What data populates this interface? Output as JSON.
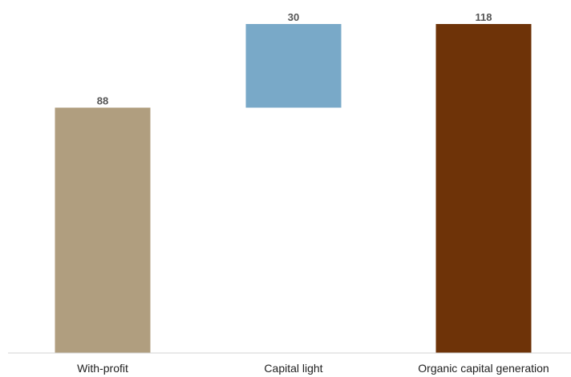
{
  "chart_data": {
    "type": "bar",
    "subtype": "waterfall",
    "categories": [
      "With-profit",
      "Capital light",
      "Organic capital generation"
    ],
    "values": [
      88,
      30,
      118
    ],
    "bar_bases": [
      0,
      88,
      0
    ],
    "data_labels": [
      "88",
      "30",
      "118"
    ],
    "title": "",
    "xlabel": "",
    "ylabel": "",
    "ylim": [
      0,
      120
    ],
    "grid": false,
    "legend": "none",
    "colors": [
      "#b09e7f",
      "#79a9c8",
      "#6e3308"
    ]
  }
}
